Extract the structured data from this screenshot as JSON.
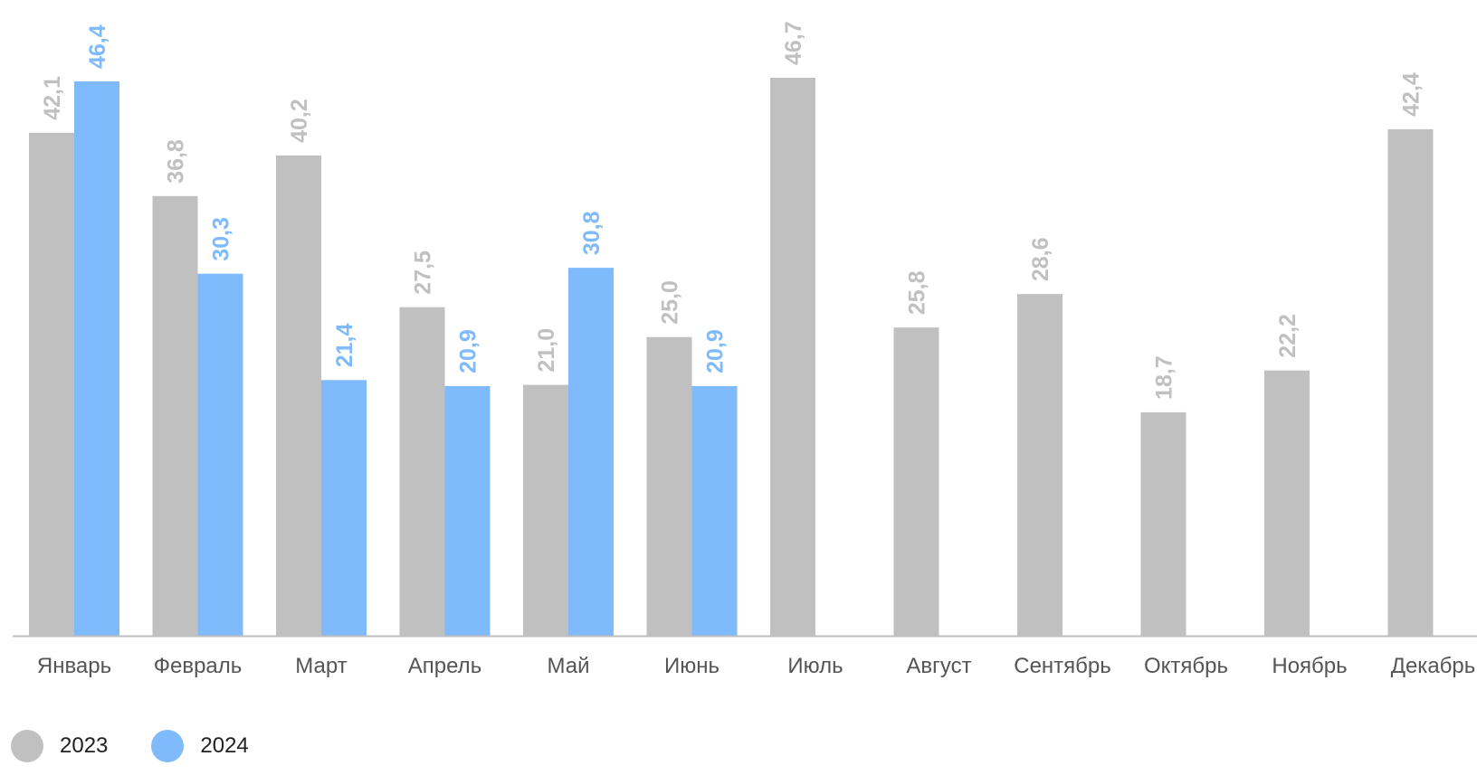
{
  "colors": {
    "2023": "#c0c0c0",
    "2024": "#7fbafc",
    "axis": "#bfbfbf",
    "tick_text": "#555555"
  },
  "legend": [
    {
      "label": "2023",
      "color": "#c0c0c0"
    },
    {
      "label": "2024",
      "color": "#7fbafc"
    }
  ],
  "chart_data": {
    "type": "bar",
    "categories": [
      "Январь",
      "Февраль",
      "Март",
      "Апрель",
      "Май",
      "Июнь",
      "Июль",
      "Август",
      "Сентябрь",
      "Октябрь",
      "Ноябрь",
      "Декабрь"
    ],
    "series": [
      {
        "name": "2023",
        "values": [
          42.1,
          36.8,
          40.2,
          27.5,
          21.0,
          25.0,
          46.7,
          25.8,
          28.6,
          18.7,
          22.2,
          42.4
        ],
        "labels": [
          "42,1",
          "36,8",
          "40,2",
          "27,5",
          "21,0",
          "25,0",
          "46,7",
          "25,8",
          "28,6",
          "18,7",
          "22,2",
          "42,4"
        ]
      },
      {
        "name": "2024",
        "values": [
          46.4,
          30.3,
          21.4,
          20.9,
          30.8,
          20.9,
          null,
          null,
          null,
          null,
          null,
          null
        ],
        "labels": [
          "46,4",
          "30,3",
          "21,4",
          "20,9",
          "30,8",
          "20,9",
          null,
          null,
          null,
          null,
          null,
          null
        ]
      }
    ],
    "ylim": [
      0,
      53.5
    ],
    "grid": false,
    "legend_position": "bottom-left"
  }
}
